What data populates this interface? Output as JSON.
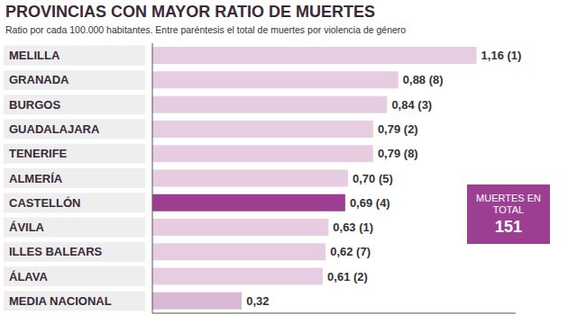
{
  "chart_data": {
    "type": "bar",
    "orientation": "horizontal",
    "title": "PROVINCIAS CON MAYOR RATIO DE MUERTES",
    "subtitle": "Ratio por cada 100.000 habitantes. Entre paréntesis el total de muertes por violencia de género",
    "categories": [
      "MELILLA",
      "GRANADA",
      "BURGOS",
      "GUADALAJARA",
      "TENERIFE",
      "ALMERÍA",
      "CASTELLÓN",
      "ÁVILA",
      "ILLES BALEARS",
      "ÁLAVA",
      "MEDIA NACIONAL"
    ],
    "values": [
      1.16,
      0.88,
      0.84,
      0.79,
      0.79,
      0.7,
      0.69,
      0.63,
      0.62,
      0.61,
      0.32
    ],
    "value_labels": [
      "1,16 (1)",
      "0,88 (8)",
      "0,84 (3)",
      "0,79 (2)",
      "0,79 (8)",
      "0,70 (5)",
      "0,69 (4)",
      "0,63 (1)",
      "0,62 (7)",
      "0,61 (2)",
      "0,32"
    ],
    "colors": [
      "#e6cde2",
      "#e6cde2",
      "#e6cde2",
      "#e6cde2",
      "#e6cde2",
      "#e6cde2",
      "#9c3f92",
      "#e6cde2",
      "#e6cde2",
      "#e6cde2",
      "#d9b8d4"
    ],
    "xlim": [
      0,
      1.3
    ],
    "data_labels": true,
    "tick_labels": "y",
    "grid": false,
    "annotation": {
      "text": "MUERTES EN TOTAL",
      "value": 151
    }
  }
}
